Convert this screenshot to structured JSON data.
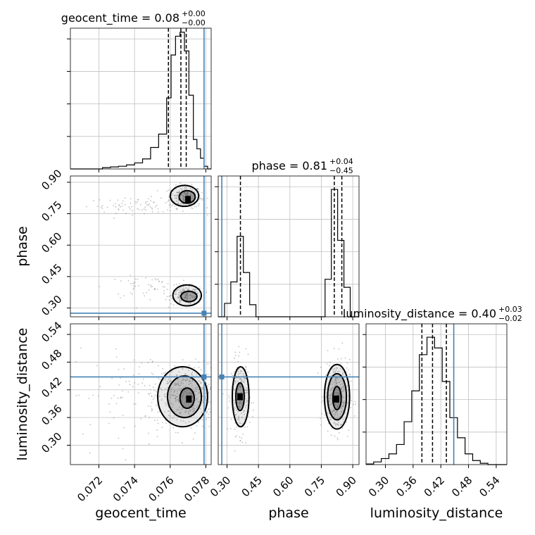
{
  "chart_data": {
    "type": "corner",
    "parameters": [
      "geocent_time",
      "phase",
      "luminosity_distance"
    ],
    "colors": {
      "truth": "#4682b4",
      "hist": "#000000",
      "grid": "#c0c0c0",
      "points": "#888888"
    },
    "grid": true,
    "truths": {
      "geocent_time": 0.0779,
      "phase": 0.275,
      "luminosity_distance": 0.448
    },
    "ranges": {
      "geocent_time": [
        0.0704,
        0.0783
      ],
      "phase": [
        0.258,
        0.93
      ],
      "luminosity_distance": [
        0.258,
        0.563
      ]
    },
    "titles": [
      {
        "param": "geocent_time",
        "main": "geocent_time = 0.08",
        "plus": "+0.00",
        "minus": "−0.00"
      },
      {
        "param": "phase",
        "main": "phase = 0.81",
        "plus": "+0.04",
        "minus": "−0.45"
      },
      {
        "param": "luminosity_distance",
        "main": "luminosity_distance = 0.40",
        "plus": "+0.03",
        "minus": "−0.02"
      }
    ],
    "axis_labels": {
      "geocent_time": "geocent_time",
      "phase": "phase",
      "luminosity_distance": "luminosity_distance"
    },
    "ticks": {
      "geocent_time": [
        0.072,
        0.074,
        0.076,
        0.078
      ],
      "phase": [
        0.3,
        0.45,
        0.6,
        0.75,
        0.9
      ],
      "luminosity_distance": [
        0.3,
        0.36,
        0.42,
        0.48,
        0.54
      ]
    },
    "tick_labels": {
      "geocent_time": [
        "0.072",
        "0.074",
        "0.076",
        "0.078"
      ],
      "phase": [
        "0.30",
        "0.45",
        "0.60",
        "0.75",
        "0.90"
      ],
      "luminosity_distance": [
        "0.30",
        "0.36",
        "0.42",
        "0.48",
        "0.54"
      ]
    },
    "hist_y_ticks": {
      "geocent_time": [
        0.25,
        0.5,
        0.75,
        1.0
      ],
      "phase": [
        0.25,
        0.5,
        0.75,
        1.0
      ],
      "luminosity_distance": [
        0.25,
        0.5,
        0.75,
        1.0
      ]
    },
    "quantiles": {
      "geocent_time": [
        0.0759,
        0.0766,
        0.0769
      ],
      "phase": [
        0.364,
        0.812,
        0.848
      ],
      "luminosity_distance": [
        0.379,
        0.402,
        0.432
      ]
    },
    "histograms": {
      "geocent_time": {
        "edges": [
          0.0704,
          0.07085,
          0.0713,
          0.07175,
          0.0722,
          0.07265,
          0.0731,
          0.07355,
          0.074,
          0.07445,
          0.0749,
          0.07535,
          0.0758,
          0.07605,
          0.0763,
          0.07655,
          0.0768,
          0.07705,
          0.0773,
          0.0775,
          0.0777,
          0.0779,
          0.0781,
          0.0783
        ],
        "counts": [
          0,
          0,
          0,
          0,
          0.01,
          0.015,
          0.02,
          0.03,
          0.045,
          0.075,
          0.16,
          0.26,
          0.53,
          0.85,
          0.99,
          1.02,
          0.88,
          0.55,
          0.22,
          0.15,
          0.08,
          0.02,
          0
        ]
      },
      "phase": {
        "edges": [
          0.258,
          0.288,
          0.318,
          0.348,
          0.378,
          0.408,
          0.438,
          0.468,
          0.498,
          0.528,
          0.558,
          0.588,
          0.618,
          0.648,
          0.678,
          0.708,
          0.738,
          0.768,
          0.798,
          0.828,
          0.858,
          0.888,
          0.918,
          0.93
        ],
        "counts": [
          0,
          0.1,
          0.26,
          0.6,
          0.33,
          0.09,
          0,
          0,
          0,
          0,
          0,
          0,
          0,
          0,
          0,
          0,
          0,
          0.28,
          0.95,
          0.57,
          0.22,
          0,
          0
        ]
      },
      "luminosity_distance": {
        "edges": [
          0.258,
          0.2745,
          0.291,
          0.3075,
          0.324,
          0.3405,
          0.357,
          0.3735,
          0.39,
          0.4065,
          0.423,
          0.4395,
          0.456,
          0.4725,
          0.489,
          0.5055,
          0.522,
          0.5385,
          0.563
        ],
        "counts": [
          0.005,
          0.02,
          0.045,
          0.08,
          0.15,
          0.32,
          0.55,
          0.82,
          0.95,
          0.87,
          0.62,
          0.35,
          0.2,
          0.08,
          0.03,
          0.01,
          0,
          0
        ]
      }
    },
    "pair_panels": [
      {
        "x": "geocent_time",
        "y": "phase",
        "clusters": [
          {
            "mx": 0.07685,
            "my": 0.83,
            "sx": 0.00045,
            "sy": 0.026,
            "n": 230
          },
          {
            "mx": 0.0745,
            "my": 0.79,
            "sx": 0.0016,
            "sy": 0.018,
            "n": 90
          },
          {
            "mx": 0.07695,
            "my": 0.36,
            "sx": 0.00045,
            "sy": 0.022,
            "n": 180
          },
          {
            "mx": 0.0748,
            "my": 0.4,
            "sx": 0.0012,
            "sy": 0.025,
            "n": 60
          }
        ],
        "contours": [
          {
            "mode": 1,
            "level": "outer",
            "cx": 0.0768,
            "cy": 0.835,
            "rx": 0.0008,
            "ry": 0.05
          },
          {
            "mode": 1,
            "level": "inner",
            "cx": 0.07695,
            "cy": 0.83,
            "rx": 0.00045,
            "ry": 0.03
          },
          {
            "mode": 2,
            "level": "outer",
            "cx": 0.07695,
            "cy": 0.36,
            "rx": 0.0008,
            "ry": 0.05
          },
          {
            "mode": 2,
            "level": "inner",
            "cx": 0.07705,
            "cy": 0.355,
            "rx": 0.00045,
            "ry": 0.025
          }
        ],
        "peaks": [
          {
            "x": 0.077,
            "y": 0.818
          }
        ]
      },
      {
        "x": "geocent_time",
        "y": "luminosity_distance",
        "clusters": [
          {
            "mx": 0.07685,
            "my": 0.405,
            "sx": 0.0009,
            "sy": 0.035,
            "n": 380
          },
          {
            "mx": 0.0745,
            "my": 0.41,
            "sx": 0.0022,
            "sy": 0.045,
            "n": 120
          }
        ],
        "contours": [
          {
            "mode": 1,
            "level": "outer",
            "cx": 0.0767,
            "cy": 0.405,
            "rx": 0.0014,
            "ry": 0.065
          },
          {
            "mode": 1,
            "level": "mid",
            "cx": 0.0768,
            "cy": 0.405,
            "rx": 0.00095,
            "ry": 0.045
          },
          {
            "mode": 1,
            "level": "inner",
            "cx": 0.07695,
            "cy": 0.402,
            "rx": 0.0004,
            "ry": 0.022
          }
        ],
        "peaks": [
          {
            "x": 0.07705,
            "y": 0.4
          }
        ]
      },
      {
        "x": "phase",
        "y": "luminosity_distance",
        "clusters": [
          {
            "mx": 0.365,
            "my": 0.405,
            "sx": 0.022,
            "sy": 0.04,
            "n": 230
          },
          {
            "mx": 0.825,
            "my": 0.405,
            "sx": 0.03,
            "sy": 0.04,
            "n": 300
          }
        ],
        "contours": [
          {
            "mode": 1,
            "level": "outer",
            "cx": 0.365,
            "cy": 0.405,
            "rx": 0.04,
            "ry": 0.065
          },
          {
            "mode": 1,
            "level": "inner",
            "cx": 0.362,
            "cy": 0.405,
            "rx": 0.02,
            "ry": 0.03
          },
          {
            "mode": 2,
            "level": "outer",
            "cx": 0.825,
            "cy": 0.405,
            "rx": 0.06,
            "ry": 0.07
          },
          {
            "mode": 2,
            "level": "mid",
            "cx": 0.825,
            "cy": 0.405,
            "rx": 0.045,
            "ry": 0.05
          },
          {
            "mode": 2,
            "level": "inner",
            "cx": 0.825,
            "cy": 0.402,
            "rx": 0.02,
            "ry": 0.025
          }
        ],
        "peaks": [
          {
            "x": 0.362,
            "y": 0.405
          },
          {
            "x": 0.822,
            "y": 0.4
          }
        ]
      }
    ]
  }
}
